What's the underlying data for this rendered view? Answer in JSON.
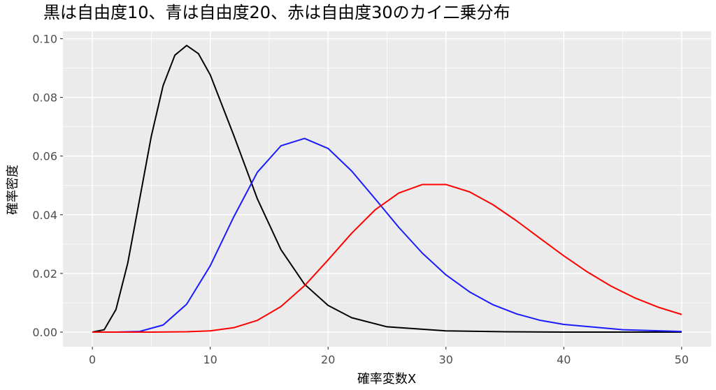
{
  "chart_data": {
    "type": "line",
    "title": "黒は自由度10、青は自由度20、赤は自由度30のカイ二乗分布",
    "xlabel": "確率変数X",
    "ylabel": "確率密度",
    "xlim": [
      -2.5,
      52.5
    ],
    "ylim": [
      -0.005,
      0.1025
    ],
    "x_ticks": [
      0,
      10,
      20,
      30,
      40,
      50
    ],
    "x_tick_labels": [
      "0",
      "10",
      "20",
      "30",
      "40",
      "50"
    ],
    "y_ticks": [
      0.0,
      0.02,
      0.04,
      0.06,
      0.08,
      0.1
    ],
    "y_tick_labels": [
      "0.00",
      "0.02",
      "0.04",
      "0.06",
      "0.08",
      "0.10"
    ],
    "grid": true,
    "panel_background": "#ebebeb",
    "series": [
      {
        "df": 10,
        "color": "#000000",
        "x": [
          0,
          1,
          2,
          3,
          4,
          5,
          6,
          7,
          8,
          9,
          10,
          12,
          14,
          16,
          18,
          20,
          22,
          25,
          30,
          35,
          40,
          45,
          50
        ],
        "y": [
          0,
          0.0008,
          0.0077,
          0.0235,
          0.0451,
          0.0668,
          0.084,
          0.0944,
          0.0977,
          0.0949,
          0.0877,
          0.067,
          0.0454,
          0.0281,
          0.0163,
          0.0091,
          0.0049,
          0.0018,
          0.0004,
          0.0001,
          0,
          0,
          0
        ]
      },
      {
        "df": 20,
        "color": "#1a1aff",
        "x": [
          0,
          2,
          4,
          6,
          8,
          10,
          12,
          14,
          16,
          18,
          20,
          22,
          24,
          26,
          28,
          30,
          32,
          34,
          36,
          38,
          40,
          45,
          50
        ],
        "y": [
          0,
          0,
          0.0002,
          0.0024,
          0.0095,
          0.0226,
          0.0393,
          0.0545,
          0.0635,
          0.066,
          0.0626,
          0.0549,
          0.0454,
          0.0357,
          0.0269,
          0.0195,
          0.0137,
          0.0093,
          0.0062,
          0.004,
          0.0026,
          0.0008,
          0.0002
        ]
      },
      {
        "df": 30,
        "color": "#ff0000",
        "x": [
          0,
          5,
          8,
          10,
          12,
          14,
          16,
          18,
          20,
          22,
          24,
          26,
          28,
          30,
          32,
          34,
          36,
          38,
          40,
          42,
          44,
          46,
          48,
          50
        ],
        "y": [
          0,
          0,
          0.0001,
          0.0004,
          0.0015,
          0.004,
          0.0087,
          0.0158,
          0.0246,
          0.0337,
          0.0417,
          0.0474,
          0.0503,
          0.0503,
          0.0478,
          0.0434,
          0.0379,
          0.0319,
          0.026,
          0.0205,
          0.0157,
          0.0117,
          0.0085,
          0.006
        ]
      }
    ]
  }
}
